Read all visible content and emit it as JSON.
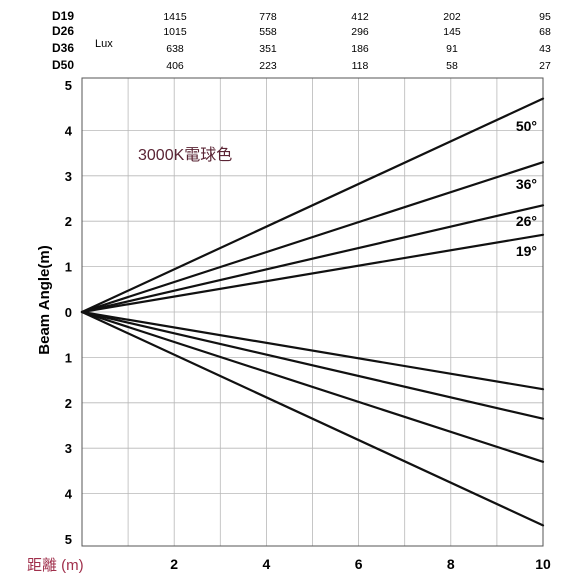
{
  "table": {
    "unit_label": "Lux",
    "rows": [
      {
        "label": "D19",
        "values": [
          "1415",
          "778",
          "412",
          "202",
          "95"
        ]
      },
      {
        "label": "D26",
        "values": [
          "1015",
          "558",
          "296",
          "145",
          "68"
        ]
      },
      {
        "label": "D36",
        "values": [
          "638",
          "351",
          "186",
          "91",
          "43"
        ]
      },
      {
        "label": "D50",
        "values": [
          "406",
          "223",
          "118",
          "58",
          "27"
        ]
      }
    ]
  },
  "chart_data": {
    "type": "line",
    "title": "",
    "annotation": "3000K電球色",
    "ylabel": "Beam Angle(m)",
    "xlabel": "距離 (m)",
    "xlim": [
      0,
      10
    ],
    "ylim": [
      -5,
      5
    ],
    "grid": true,
    "x_ticks": [
      "2",
      "4",
      "6",
      "8",
      "10"
    ],
    "y_ticks_upper": [
      "5",
      "4",
      "3",
      "2",
      "1",
      "0"
    ],
    "y_ticks_lower": [
      "1",
      "2",
      "3",
      "4",
      "5"
    ],
    "series": [
      {
        "name": "50°",
        "x": [
          0,
          10
        ],
        "upper": [
          0,
          4.7
        ],
        "lower": [
          0,
          -4.7
        ]
      },
      {
        "name": "36°",
        "x": [
          0,
          10
        ],
        "upper": [
          0,
          3.3
        ],
        "lower": [
          0,
          -3.3
        ]
      },
      {
        "name": "26°",
        "x": [
          0,
          10
        ],
        "upper": [
          0,
          2.35
        ],
        "lower": [
          0,
          -2.35
        ]
      },
      {
        "name": "19°",
        "x": [
          0,
          10
        ],
        "upper": [
          0,
          1.7
        ],
        "lower": [
          0,
          -1.7
        ]
      }
    ]
  }
}
